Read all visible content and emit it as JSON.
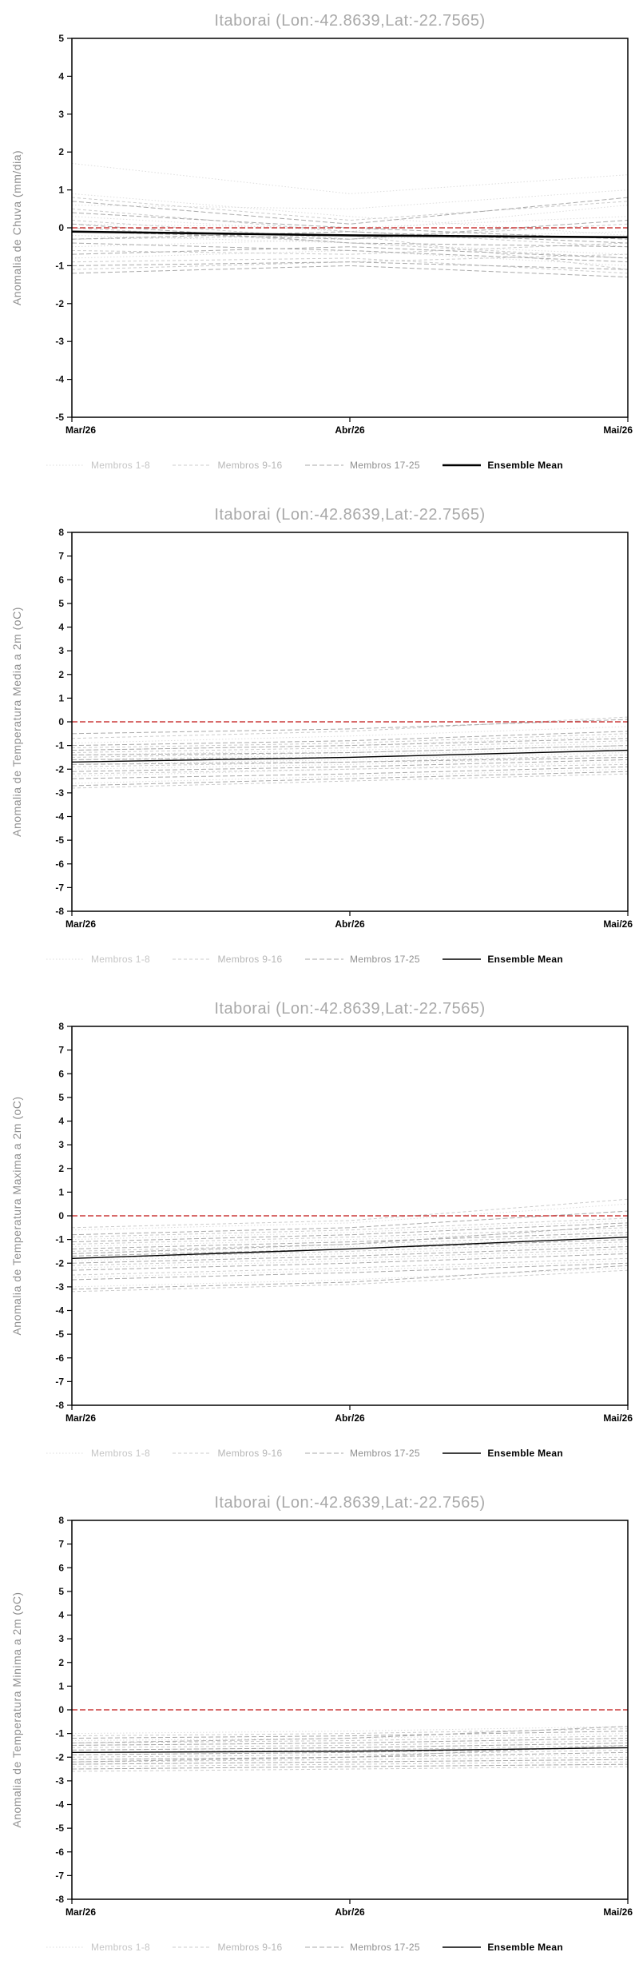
{
  "chart_data": [
    {
      "type": "line",
      "title": "Itaborai (Lon:-42.8639,Lat:-22.7565)",
      "ylabel": "Anomalia de Chuva (mm/dia)",
      "ylim": [
        -5,
        5
      ],
      "ytick_step": 1,
      "x_categories": [
        "Mar/26",
        "Abr/26",
        "Mai/26"
      ],
      "zero_line": {
        "value": 0,
        "color": "#cc3b3b"
      },
      "mean_width": 2.6,
      "ensemble_mean": [
        -0.1,
        -0.2,
        -0.25
      ],
      "member_groups": [
        {
          "name": "Membros 1-8",
          "color": "#dddddd",
          "dash": "1.5 2.5",
          "series": [
            [
              1.7,
              0.9,
              1.4
            ],
            [
              0.9,
              0.3,
              -0.2
            ],
            [
              0.6,
              0.5,
              1.0
            ],
            [
              0.3,
              -0.1,
              0.6
            ],
            [
              0.1,
              0.0,
              0.3
            ],
            [
              -0.2,
              -0.4,
              -0.7
            ],
            [
              -0.5,
              -0.3,
              -0.1
            ],
            [
              -0.8,
              -0.6,
              -1.0
            ]
          ]
        },
        {
          "name": "Membros 9-16",
          "color": "#cccccc",
          "dash": "4 3",
          "series": [
            [
              0.8,
              0.2,
              0.7
            ],
            [
              0.5,
              -0.1,
              -0.5
            ],
            [
              0.2,
              -0.3,
              0.1
            ],
            [
              0.0,
              -0.4,
              -0.8
            ],
            [
              -0.3,
              -0.2,
              -1.1
            ],
            [
              -0.6,
              -0.7,
              -0.4
            ],
            [
              -0.9,
              -0.8,
              -1.2
            ],
            [
              -1.1,
              -0.9,
              -0.7
            ]
          ]
        },
        {
          "name": "Membros 17-25",
          "color": "#aaaaaa",
          "dash": "6 3",
          "series": [
            [
              0.7,
              0.1,
              0.8
            ],
            [
              0.4,
              0.0,
              -0.3
            ],
            [
              0.1,
              -0.4,
              -0.5
            ],
            [
              -0.1,
              -0.3,
              0.2
            ],
            [
              -0.4,
              -0.6,
              -0.9
            ],
            [
              -0.7,
              -0.5,
              -0.8
            ],
            [
              -1.0,
              -0.9,
              -1.1
            ],
            [
              -1.2,
              -1.0,
              -1.3
            ],
            [
              -0.3,
              -0.1,
              -0.4
            ]
          ]
        }
      ],
      "legend": [
        {
          "label": "Membros 1-8",
          "color": "#dddddd",
          "label_color": "#c6c6c6",
          "dash": "1.5 2.5",
          "width": 1,
          "bold": false
        },
        {
          "label": "Membros 9-16",
          "color": "#cccccc",
          "label_color": "#b6b6b6",
          "dash": "4 3",
          "width": 1,
          "bold": false
        },
        {
          "label": "Membros 17-25",
          "color": "#aaaaaa",
          "label_color": "#8f8f8f",
          "dash": "6 3",
          "width": 1,
          "bold": false
        },
        {
          "label": "Ensemble Mean",
          "color": "#000000",
          "label_color": "#000000",
          "dash": "",
          "width": 2.6,
          "bold": true
        }
      ]
    },
    {
      "type": "line",
      "title": "Itaborai (Lon:-42.8639,Lat:-22.7565)",
      "ylabel": "Anomalia de Temperatura Media a 2m (oC)",
      "ylim": [
        -8,
        8
      ],
      "ytick_step": 1,
      "x_categories": [
        "Mar/26",
        "Abr/26",
        "Mai/26"
      ],
      "zero_line": {
        "value": 0,
        "color": "#cc3b3b"
      },
      "mean_width": 1.4,
      "ensemble_mean": [
        -1.7,
        -1.5,
        -1.2
      ],
      "member_groups": [
        {
          "name": "Membros 1-8",
          "color": "#dddddd",
          "dash": "1.5 2.5",
          "series": [
            [
              -0.9,
              -0.6,
              -0.2
            ],
            [
              -1.2,
              -1.0,
              -0.6
            ],
            [
              -1.4,
              -1.2,
              -0.9
            ],
            [
              -1.6,
              -1.4,
              -1.1
            ],
            [
              -1.8,
              -1.6,
              -1.3
            ],
            [
              -2.0,
              -1.8,
              -1.5
            ],
            [
              -2.3,
              -2.0,
              -1.7
            ],
            [
              -2.6,
              -2.3,
              -2.0
            ]
          ]
        },
        {
          "name": "Membros 9-16",
          "color": "#cccccc",
          "dash": "4 3",
          "series": [
            [
              -0.7,
              -0.4,
              0.2
            ],
            [
              -1.1,
              -0.9,
              -0.5
            ],
            [
              -1.3,
              -1.1,
              -0.8
            ],
            [
              -1.5,
              -1.3,
              -1.0
            ],
            [
              -1.7,
              -1.5,
              -1.2
            ],
            [
              -1.9,
              -1.7,
              -1.4
            ],
            [
              -2.2,
              -2.0,
              -1.8
            ],
            [
              -2.8,
              -2.5,
              -2.2
            ]
          ]
        },
        {
          "name": "Membros 17-25",
          "color": "#aaaaaa",
          "dash": "6 3",
          "series": [
            [
              -0.5,
              -0.3,
              0.1
            ],
            [
              -1.0,
              -0.8,
              -0.4
            ],
            [
              -1.2,
              -1.0,
              -0.7
            ],
            [
              -1.4,
              -1.3,
              -1.0
            ],
            [
              -1.6,
              -1.5,
              -1.2
            ],
            [
              -1.8,
              -1.7,
              -1.5
            ],
            [
              -2.1,
              -1.9,
              -1.6
            ],
            [
              -2.4,
              -2.2,
              -1.9
            ],
            [
              -2.7,
              -2.4,
              -2.1
            ]
          ]
        }
      ],
      "legend": [
        {
          "label": "Membros 1-8",
          "color": "#dddddd",
          "label_color": "#c6c6c6",
          "dash": "1.5 2.5",
          "width": 1,
          "bold": false
        },
        {
          "label": "Membros 9-16",
          "color": "#cccccc",
          "label_color": "#b6b6b6",
          "dash": "4 3",
          "width": 1,
          "bold": false
        },
        {
          "label": "Membros 17-25",
          "color": "#aaaaaa",
          "label_color": "#8f8f8f",
          "dash": "6 3",
          "width": 1,
          "bold": false
        },
        {
          "label": "Ensemble Mean",
          "color": "#000000",
          "label_color": "#000000",
          "dash": "",
          "width": 1.4,
          "bold": true
        }
      ]
    },
    {
      "type": "line",
      "title": "Itaborai (Lon:-42.8639,Lat:-22.7565)",
      "ylabel": "Anomalia de Temperatura Maxima a 2m (oC)",
      "ylim": [
        -8,
        8
      ],
      "ytick_step": 1,
      "x_categories": [
        "Mar/26",
        "Abr/26",
        "Mai/26"
      ],
      "zero_line": {
        "value": 0,
        "color": "#cc3b3b"
      },
      "mean_width": 1.4,
      "ensemble_mean": [
        -1.8,
        -1.4,
        -0.9
      ],
      "member_groups": [
        {
          "name": "Membros 1-8",
          "color": "#dddddd",
          "dash": "1.5 2.5",
          "series": [
            [
              -0.6,
              -0.3,
              0.5
            ],
            [
              -1.0,
              -0.7,
              -0.2
            ],
            [
              -1.3,
              -1.0,
              -0.6
            ],
            [
              -1.6,
              -1.3,
              -0.9
            ],
            [
              -1.9,
              -1.6,
              -1.2
            ],
            [
              -2.2,
              -1.9,
              -1.5
            ],
            [
              -2.6,
              -2.3,
              -1.9
            ],
            [
              -3.0,
              -2.7,
              -2.2
            ]
          ]
        },
        {
          "name": "Membros 9-16",
          "color": "#cccccc",
          "dash": "4 3",
          "series": [
            [
              -0.5,
              -0.2,
              0.7
            ],
            [
              -0.9,
              -0.6,
              -0.1
            ],
            [
              -1.2,
              -0.9,
              -0.5
            ],
            [
              -1.5,
              -1.2,
              -0.8
            ],
            [
              -1.8,
              -1.5,
              -1.1
            ],
            [
              -2.1,
              -1.8,
              -1.4
            ],
            [
              -2.5,
              -2.2,
              -1.8
            ],
            [
              -3.2,
              -2.9,
              -2.3
            ]
          ]
        },
        {
          "name": "Membros 17-25",
          "color": "#aaaaaa",
          "dash": "6 3",
          "series": [
            [
              -0.8,
              -0.5,
              0.2
            ],
            [
              -1.1,
              -0.8,
              -0.3
            ],
            [
              -1.4,
              -1.1,
              -0.7
            ],
            [
              -1.7,
              -1.4,
              -1.0
            ],
            [
              -2.0,
              -1.7,
              -1.3
            ],
            [
              -2.3,
              -2.0,
              -1.6
            ],
            [
              -2.7,
              -2.4,
              -2.0
            ],
            [
              -3.1,
              -2.8,
              -2.1
            ],
            [
              -1.6,
              -1.2,
              -0.4
            ]
          ]
        }
      ],
      "legend": [
        {
          "label": "Membros 1-8",
          "color": "#dddddd",
          "label_color": "#c6c6c6",
          "dash": "1.5 2.5",
          "width": 1,
          "bold": false
        },
        {
          "label": "Membros 9-16",
          "color": "#cccccc",
          "label_color": "#b6b6b6",
          "dash": "4 3",
          "width": 1,
          "bold": false
        },
        {
          "label": "Membros 17-25",
          "color": "#aaaaaa",
          "label_color": "#8f8f8f",
          "dash": "6 3",
          "width": 1,
          "bold": false
        },
        {
          "label": "Ensemble Mean",
          "color": "#000000",
          "label_color": "#000000",
          "dash": "",
          "width": 1.4,
          "bold": true
        }
      ]
    },
    {
      "type": "line",
      "title": "Itaborai (Lon:-42.8639,Lat:-22.7565)",
      "ylabel": "Anomalia de Temperatura Minima a 2m (oC)",
      "ylim": [
        -8,
        8
      ],
      "ytick_step": 1,
      "x_categories": [
        "Mar/26",
        "Abr/26",
        "Mai/26"
      ],
      "zero_line": {
        "value": 0,
        "color": "#cc3b3b"
      },
      "mean_width": 1.4,
      "ensemble_mean": [
        -1.8,
        -1.75,
        -1.6
      ],
      "member_groups": [
        {
          "name": "Membros 1-8",
          "color": "#dddddd",
          "dash": "1.5 2.5",
          "series": [
            [
              -1.0,
              -0.9,
              -0.7
            ],
            [
              -1.3,
              -1.2,
              -1.0
            ],
            [
              -1.5,
              -1.4,
              -1.2
            ],
            [
              -1.7,
              -1.6,
              -1.4
            ],
            [
              -1.9,
              -1.8,
              -1.6
            ],
            [
              -2.1,
              -2.0,
              -1.9
            ],
            [
              -2.3,
              -2.2,
              -2.1
            ],
            [
              -2.5,
              -2.4,
              -2.3
            ]
          ]
        },
        {
          "name": "Membros 9-16",
          "color": "#cccccc",
          "dash": "4 3",
          "series": [
            [
              -1.1,
              -1.0,
              -0.8
            ],
            [
              -1.4,
              -1.3,
              -1.1
            ],
            [
              -1.6,
              -1.5,
              -1.3
            ],
            [
              -1.8,
              -1.7,
              -1.5
            ],
            [
              -2.0,
              -1.9,
              -1.7
            ],
            [
              -2.2,
              -2.1,
              -2.0
            ],
            [
              -2.4,
              -2.3,
              -2.2
            ],
            [
              -2.6,
              -2.5,
              -2.4
            ]
          ]
        },
        {
          "name": "Membros 17-25",
          "color": "#aaaaaa",
          "dash": "6 3",
          "series": [
            [
              -1.2,
              -1.1,
              -0.9
            ],
            [
              -1.5,
              -1.4,
              -1.2
            ],
            [
              -1.7,
              -1.6,
              -1.4
            ],
            [
              -1.9,
              -1.8,
              -1.6
            ],
            [
              -2.1,
              -2.0,
              -1.8
            ],
            [
              -2.3,
              -2.2,
              -2.1
            ],
            [
              -2.5,
              -2.4,
              -2.3
            ],
            [
              -2.2,
              -2.0,
              -1.5
            ],
            [
              -1.4,
              -1.2,
              -0.7
            ]
          ]
        }
      ],
      "legend": [
        {
          "label": "Membros 1-8",
          "color": "#dddddd",
          "label_color": "#c6c6c6",
          "dash": "1.5 2.5",
          "width": 1,
          "bold": false
        },
        {
          "label": "Membros 9-16",
          "color": "#cccccc",
          "label_color": "#b6b6b6",
          "dash": "4 3",
          "width": 1,
          "bold": false
        },
        {
          "label": "Membros 17-25",
          "color": "#aaaaaa",
          "label_color": "#8f8f8f",
          "dash": "6 3",
          "width": 1,
          "bold": false
        },
        {
          "label": "Ensemble Mean",
          "color": "#000000",
          "label_color": "#000000",
          "dash": "",
          "width": 1.4,
          "bold": true
        }
      ]
    }
  ]
}
